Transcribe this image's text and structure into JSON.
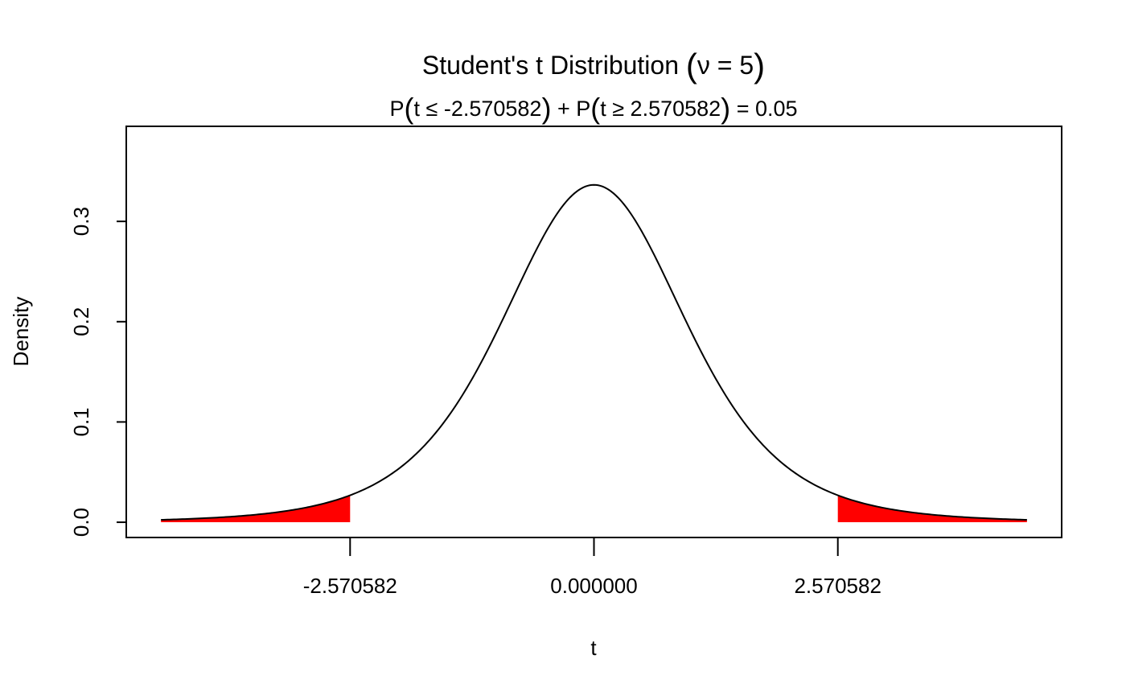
{
  "chart_data": {
    "type": "area",
    "title": "Student's t Distribution (ν = 5)",
    "title_parts": {
      "main": "Student's t Distribution",
      "param": "ν = 5"
    },
    "subtitle": "P(t ≤ -2.570582) + P(t ≥ 2.570582) = 0.05",
    "subtitle_parts": {
      "p1": "P",
      "c1": "t ≤ -2.570582",
      "plus": "+ P",
      "c2": "t ≥ 2.570582",
      "result": "= 0.05"
    },
    "xlabel": "t",
    "ylabel": "Density",
    "df": 5,
    "critical_value": 2.570582,
    "alpha": 0.05,
    "xlim": [
      -4.93,
      4.93
    ],
    "curve_range": [
      -4.564,
      4.564
    ],
    "ylim": [
      -0.0152,
      0.3948
    ],
    "x_ticks": [
      -2.570582,
      0,
      2.570582
    ],
    "x_tick_labels": [
      "-2.570582",
      "0.000000",
      "2.570582"
    ],
    "y_ticks": [
      0,
      0.1,
      0.2,
      0.3
    ],
    "y_tick_labels": [
      "0.0",
      "0.1",
      "0.2",
      "0.3"
    ],
    "shade_color": "#ff0000",
    "line_color": "#000000",
    "grid": false
  }
}
